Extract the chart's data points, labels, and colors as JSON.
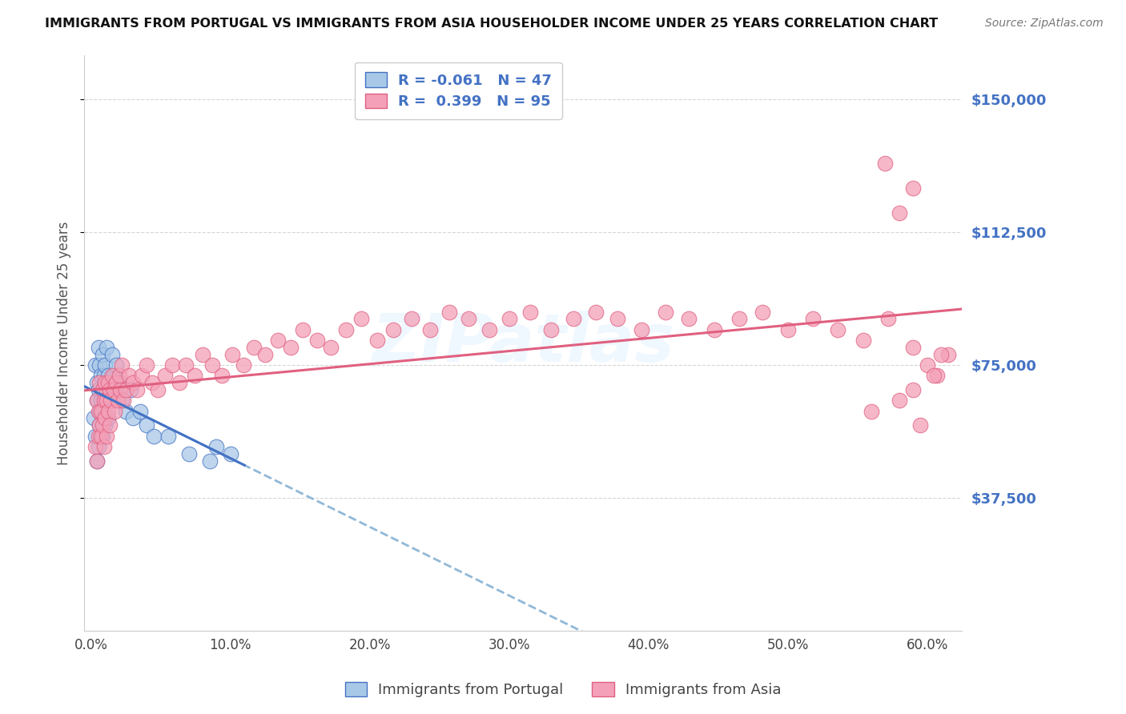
{
  "title": "IMMIGRANTS FROM PORTUGAL VS IMMIGRANTS FROM ASIA HOUSEHOLDER INCOME UNDER 25 YEARS CORRELATION CHART",
  "source": "Source: ZipAtlas.com",
  "ylabel": "Householder Income Under 25 years",
  "ytick_labels": [
    "$37,500",
    "$75,000",
    "$112,500",
    "$150,000"
  ],
  "ytick_vals": [
    37500,
    75000,
    112500,
    150000
  ],
  "ymin": 0,
  "ymax": 162500,
  "xmin": -0.005,
  "xmax": 0.625,
  "r_portugal": -0.061,
  "n_portugal": 47,
  "r_asia": 0.399,
  "n_asia": 95,
  "color_portugal": "#a8c8e8",
  "color_asia": "#f4a0b8",
  "line_portugal_solid": "#4472c4",
  "line_asia_solid": "#e06080",
  "line_portugal_dashed": "#90b8d8",
  "portugal_x": [
    0.002,
    0.003,
    0.003,
    0.004,
    0.004,
    0.004,
    0.005,
    0.005,
    0.005,
    0.006,
    0.006,
    0.006,
    0.007,
    0.007,
    0.007,
    0.008,
    0.008,
    0.008,
    0.008,
    0.009,
    0.009,
    0.01,
    0.01,
    0.01,
    0.011,
    0.011,
    0.012,
    0.012,
    0.013,
    0.014,
    0.015,
    0.016,
    0.017,
    0.018,
    0.02,
    0.022,
    0.025,
    0.028,
    0.03,
    0.035,
    0.04,
    0.045,
    0.055,
    0.07,
    0.085,
    0.09,
    0.1
  ],
  "portugal_y": [
    60000,
    55000,
    75000,
    65000,
    70000,
    48000,
    80000,
    68000,
    52000,
    75000,
    62000,
    58000,
    72000,
    65000,
    55000,
    78000,
    68000,
    62000,
    55000,
    72000,
    60000,
    75000,
    65000,
    58000,
    80000,
    68000,
    72000,
    60000,
    70000,
    65000,
    78000,
    72000,
    68000,
    75000,
    70000,
    65000,
    62000,
    68000,
    60000,
    62000,
    58000,
    55000,
    55000,
    50000,
    48000,
    52000,
    50000
  ],
  "asia_x": [
    0.003,
    0.004,
    0.004,
    0.005,
    0.005,
    0.006,
    0.006,
    0.007,
    0.007,
    0.008,
    0.008,
    0.009,
    0.009,
    0.01,
    0.01,
    0.011,
    0.011,
    0.012,
    0.012,
    0.013,
    0.013,
    0.014,
    0.015,
    0.016,
    0.017,
    0.018,
    0.019,
    0.02,
    0.021,
    0.022,
    0.023,
    0.025,
    0.027,
    0.03,
    0.033,
    0.036,
    0.04,
    0.044,
    0.048,
    0.053,
    0.058,
    0.063,
    0.068,
    0.074,
    0.08,
    0.087,
    0.094,
    0.101,
    0.109,
    0.117,
    0.125,
    0.134,
    0.143,
    0.152,
    0.162,
    0.172,
    0.183,
    0.194,
    0.205,
    0.217,
    0.23,
    0.243,
    0.257,
    0.271,
    0.286,
    0.3,
    0.315,
    0.33,
    0.346,
    0.362,
    0.378,
    0.395,
    0.412,
    0.429,
    0.447,
    0.465,
    0.482,
    0.5,
    0.518,
    0.536,
    0.554,
    0.572,
    0.59,
    0.607,
    0.615,
    0.6,
    0.58,
    0.56,
    0.59,
    0.605,
    0.61,
    0.59,
    0.57,
    0.58,
    0.595
  ],
  "asia_y": [
    52000,
    48000,
    65000,
    55000,
    62000,
    58000,
    70000,
    62000,
    55000,
    68000,
    58000,
    65000,
    52000,
    70000,
    60000,
    65000,
    55000,
    70000,
    62000,
    68000,
    58000,
    65000,
    72000,
    68000,
    62000,
    70000,
    65000,
    72000,
    68000,
    75000,
    65000,
    68000,
    72000,
    70000,
    68000,
    72000,
    75000,
    70000,
    68000,
    72000,
    75000,
    70000,
    75000,
    72000,
    78000,
    75000,
    72000,
    78000,
    75000,
    80000,
    78000,
    82000,
    80000,
    85000,
    82000,
    80000,
    85000,
    88000,
    82000,
    85000,
    88000,
    85000,
    90000,
    88000,
    85000,
    88000,
    90000,
    85000,
    88000,
    90000,
    88000,
    85000,
    90000,
    88000,
    85000,
    88000,
    90000,
    85000,
    88000,
    85000,
    82000,
    88000,
    80000,
    72000,
    78000,
    75000,
    65000,
    62000,
    68000,
    72000,
    78000,
    125000,
    132000,
    118000,
    58000
  ]
}
